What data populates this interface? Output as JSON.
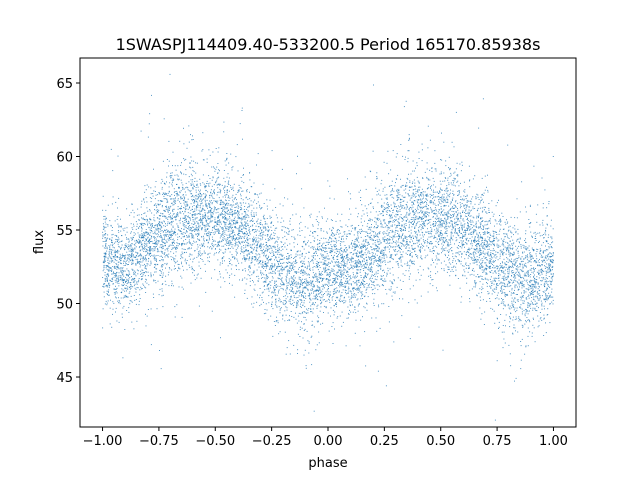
{
  "chart_data": {
    "type": "scatter",
    "title": "1SWASPJ114409.40-533200.5 Period 165170.85938s",
    "xlabel": "phase",
    "ylabel": "flux",
    "xlim": [
      -1.1,
      1.1
    ],
    "ylim": [
      41.6,
      66.7
    ],
    "grid": false,
    "marker_color": "#1f77b4",
    "x_ticks": [
      {
        "value": -1.0,
        "label": "−1.00"
      },
      {
        "value": -0.75,
        "label": "−0.75"
      },
      {
        "value": -0.5,
        "label": "−0.50"
      },
      {
        "value": -0.25,
        "label": "−0.25"
      },
      {
        "value": 0.0,
        "label": "0.00"
      },
      {
        "value": 0.25,
        "label": "0.25"
      },
      {
        "value": 0.5,
        "label": "0.50"
      },
      {
        "value": 0.75,
        "label": "0.75"
      },
      {
        "value": 1.0,
        "label": "1.00"
      }
    ],
    "y_ticks": [
      {
        "value": 45,
        "label": "45"
      },
      {
        "value": 50,
        "label": "50"
      },
      {
        "value": 55,
        "label": "55"
      },
      {
        "value": 60,
        "label": "60"
      },
      {
        "value": 65,
        "label": "65"
      }
    ],
    "trend": {
      "phase": [
        -1.0,
        -0.9,
        -0.8,
        -0.7,
        -0.6,
        -0.5,
        -0.4,
        -0.3,
        -0.2,
        -0.1,
        0.0,
        0.1,
        0.2,
        0.3,
        0.4,
        0.5,
        0.6,
        0.7,
        0.8,
        0.9,
        1.0
      ],
      "flux": [
        53.0,
        52.5,
        54.0,
        55.5,
        56.0,
        55.8,
        55.3,
        53.8,
        52.0,
        51.5,
        52.5,
        52.5,
        53.5,
        55.0,
        55.8,
        55.8,
        55.3,
        53.8,
        52.0,
        51.5,
        52.8
      ],
      "scatter": [
        1.6,
        1.6,
        1.8,
        2.0,
        1.9,
        1.8,
        1.7,
        1.8,
        1.9,
        1.9,
        1.7,
        1.6,
        1.8,
        2.0,
        1.9,
        1.8,
        1.7,
        1.8,
        1.9,
        1.9,
        1.6
      ]
    },
    "point_count": 9000
  }
}
